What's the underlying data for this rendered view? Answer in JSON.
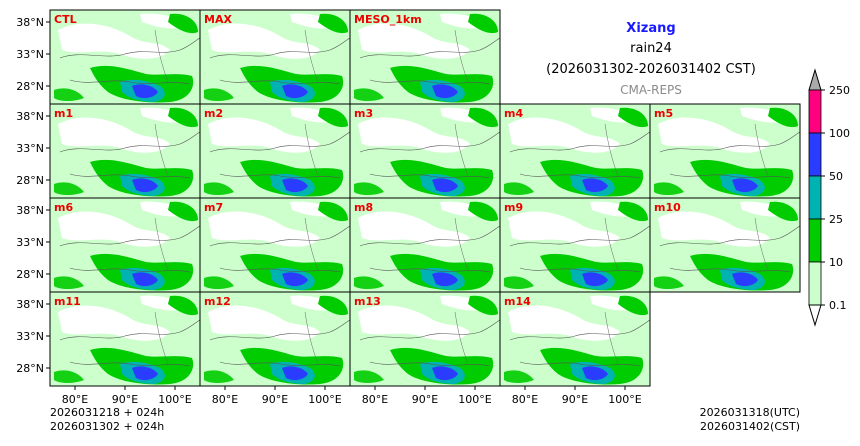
{
  "chart_data": {
    "type": "heatmap",
    "title": "Xizang",
    "subtitle": "rain24",
    "period": "(2026031302-2026031402 CST)",
    "source": "CMA-REPS",
    "panels": [
      "CTL",
      "MAX",
      "MESO_1km",
      "m1",
      "m2",
      "m3",
      "m4",
      "m5",
      "m6",
      "m7",
      "m8",
      "m9",
      "m10",
      "m11",
      "m12",
      "m13",
      "m14"
    ],
    "lat_ticks": [
      "38°N",
      "33°N",
      "28°N"
    ],
    "lon_ticks": [
      "80°E",
      "90°E",
      "100°E"
    ],
    "colorbar": {
      "levels": [
        "0.1",
        "10",
        "25",
        "50",
        "100",
        "250"
      ],
      "colors": [
        "#ccffcc",
        "#00cc00",
        "#00b3b3",
        "#2a3cff",
        "#ff007f",
        "#aaaaaa"
      ]
    },
    "init_utc": "2026031218  +  024h",
    "init_cst": "2026031302  +  024h",
    "valid_utc": "2026031318(UTC)",
    "valid_cst": "2026031402(CST)"
  }
}
